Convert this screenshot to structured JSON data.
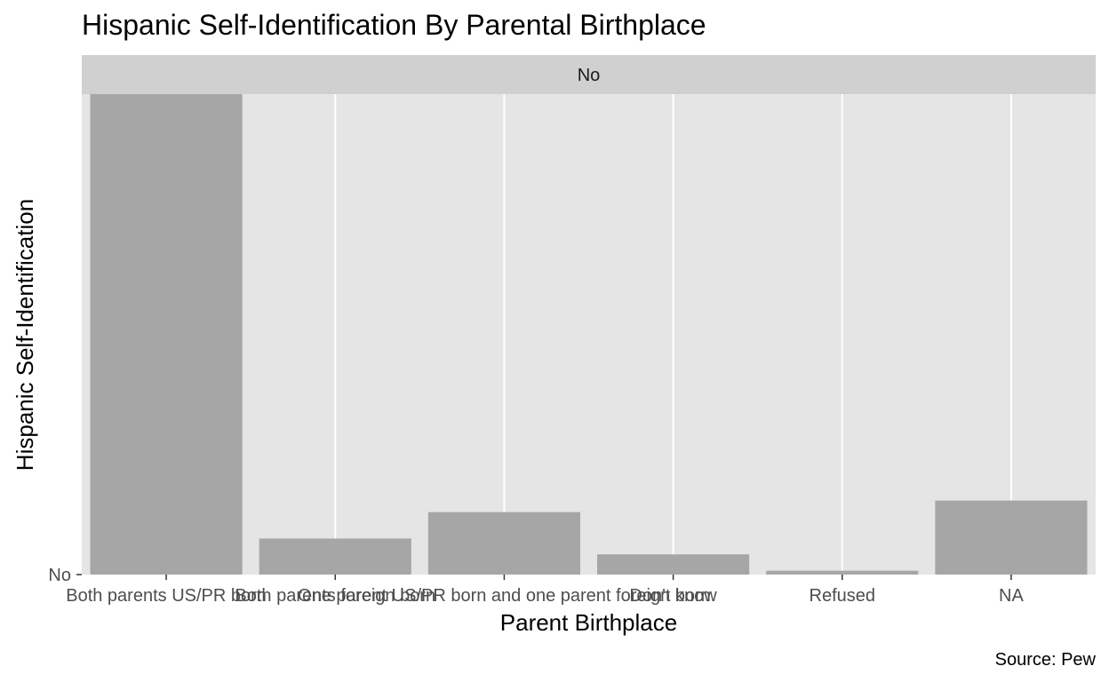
{
  "chart_data": {
    "type": "bar",
    "title": "Hispanic Self-Identification By Parental Birthplace",
    "facet_label": "No",
    "xlabel": "Parent Birthplace",
    "ylabel": "Hispanic Self-Identification",
    "y_tick_labels": [
      "No"
    ],
    "caption": "Source: Pew",
    "categories": [
      "Both parents US/PR born",
      "Both parents foreign born",
      "One parent US/PR born and one parent foreign born",
      "Don't know",
      "Refused",
      "NA"
    ],
    "values": [
      100,
      7.5,
      13,
      4.2,
      0.8,
      15.4
    ],
    "ylim": [
      0,
      100
    ],
    "grid": true,
    "colors": {
      "panel_bg": "#e5e5e5",
      "strip_bg": "#d0d0d0",
      "bar_fill": "#a6a6a6",
      "gridline": "#ffffff",
      "tick_text": "#4d4d4d",
      "title_text": "#000000"
    }
  }
}
